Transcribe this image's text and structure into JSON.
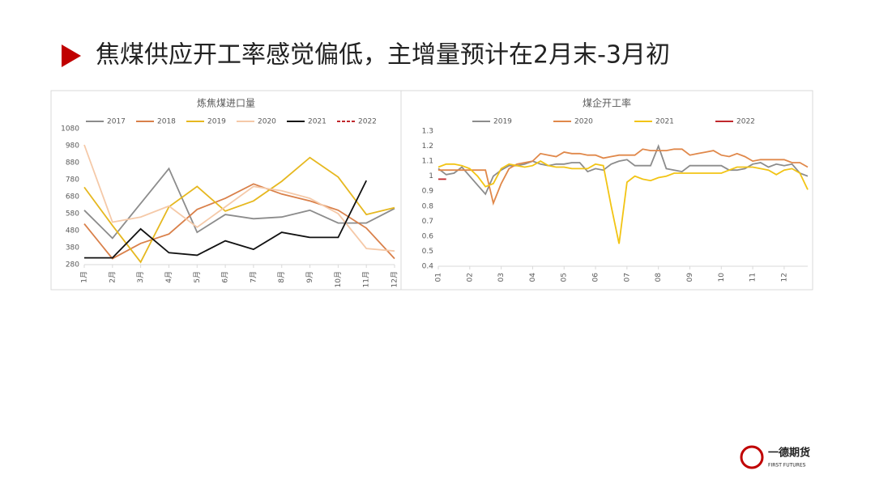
{
  "title": "焦煤供应开工率感觉偏低，主增量预计在2月末-3月初",
  "logo": {
    "name": "一德期货",
    "english": "FIRST FUTURES"
  },
  "chart_data": [
    {
      "type": "line",
      "title": "炼焦煤进口量",
      "categories": [
        "1月",
        "2月",
        "3月",
        "4月",
        "5月",
        "6月",
        "7月",
        "8月",
        "9月",
        "10月",
        "11月",
        "12月"
      ],
      "ylim": [
        280,
        1080
      ],
      "yticks": [
        280,
        380,
        480,
        580,
        680,
        780,
        880,
        980,
        1080
      ],
      "grid": false,
      "legend": "top",
      "series": [
        {
          "name": "2017",
          "color": "#8c8c8c",
          "values": [
            600,
            435,
            640,
            845,
            470,
            575,
            550,
            560,
            600,
            525,
            525,
            610
          ]
        },
        {
          "name": "2018",
          "color": "#d9804a",
          "values": [
            520,
            315,
            405,
            460,
            605,
            670,
            755,
            695,
            655,
            600,
            495,
            315
          ]
        },
        {
          "name": "2019",
          "color": "#e6b820",
          "values": [
            735,
            510,
            295,
            620,
            740,
            595,
            655,
            770,
            910,
            795,
            575,
            615
          ]
        },
        {
          "name": "2020",
          "color": "#f5c9a8",
          "values": [
            985,
            530,
            560,
            625,
            500,
            620,
            740,
            715,
            670,
            580,
            375,
            360
          ]
        },
        {
          "name": "2021",
          "color": "#111111",
          "values": [
            320,
            320,
            490,
            350,
            335,
            420,
            370,
            470,
            440,
            440,
            775,
            null
          ]
        },
        {
          "name": "2022",
          "color": "#c0282d",
          "dash": true,
          "values": [
            null,
            null,
            null,
            null,
            null,
            null,
            null,
            null,
            null,
            null,
            null,
            null
          ]
        }
      ]
    },
    {
      "type": "line",
      "title": "煤企开工率",
      "categories": [
        "01",
        null,
        null,
        null,
        "02",
        null,
        null,
        null,
        "03",
        null,
        null,
        null,
        "04",
        null,
        null,
        null,
        "05",
        null,
        null,
        null,
        "06",
        null,
        null,
        null,
        "07",
        null,
        null,
        null,
        "08",
        null,
        null,
        null,
        "09",
        null,
        null,
        null,
        "10",
        null,
        null,
        null,
        "11",
        null,
        null,
        null,
        "12",
        null,
        null,
        null
      ],
      "ylim": [
        0.4,
        1.3
      ],
      "yticks": [
        0.4,
        0.5,
        0.6,
        0.7,
        0.8,
        0.9,
        1,
        1.1,
        1.2,
        1.3
      ],
      "grid": false,
      "legend": "top",
      "series": [
        {
          "name": "2019",
          "color": "#8c8c8c",
          "values": [
            1.05,
            1.01,
            1.02,
            1.06,
            1.0,
            0.94,
            0.88,
            1.0,
            1.04,
            1.07,
            1.07,
            1.08,
            1.1,
            1.08,
            1.07,
            1.08,
            1.08,
            1.09,
            1.09,
            1.03,
            1.05,
            1.04,
            1.08,
            1.1,
            1.11,
            1.07,
            1.07,
            1.07,
            1.2,
            1.05,
            1.04,
            1.03,
            1.07,
            1.07,
            1.07,
            1.07,
            1.07,
            1.04,
            1.04,
            1.05,
            1.08,
            1.09,
            1.06,
            1.08,
            1.07,
            1.08,
            1.02,
            1.0
          ]
        },
        {
          "name": "2020",
          "color": "#e0884a",
          "values": [
            1.04,
            1.04,
            1.04,
            1.04,
            1.04,
            1.04,
            1.04,
            0.82,
            0.95,
            1.05,
            1.08,
            1.09,
            1.1,
            1.15,
            1.14,
            1.13,
            1.16,
            1.15,
            1.15,
            1.14,
            1.14,
            1.12,
            1.13,
            1.14,
            1.14,
            1.14,
            1.18,
            1.17,
            1.17,
            1.17,
            1.18,
            1.18,
            1.14,
            1.15,
            1.16,
            1.17,
            1.14,
            1.13,
            1.15,
            1.13,
            1.1,
            1.11,
            1.11,
            1.11,
            1.11,
            1.09,
            1.09,
            1.06
          ]
        },
        {
          "name": "2021",
          "color": "#f2c414",
          "values": [
            1.06,
            1.08,
            1.08,
            1.07,
            1.05,
            1.0,
            0.93,
            0.95,
            1.05,
            1.08,
            1.07,
            1.06,
            1.07,
            1.1,
            1.07,
            1.06,
            1.06,
            1.05,
            1.05,
            1.05,
            1.08,
            1.07,
            0.8,
            0.55,
            0.96,
            1.0,
            0.98,
            0.97,
            0.99,
            1.0,
            1.02,
            1.02,
            1.02,
            1.02,
            1.02,
            1.02,
            1.02,
            1.04,
            1.06,
            1.06,
            1.06,
            1.05,
            1.04,
            1.01,
            1.04,
            1.05,
            1.02,
            0.91
          ]
        },
        {
          "name": "2022",
          "color": "#c0282d",
          "values": [
            0.98,
            0.98,
            null,
            null,
            null,
            null,
            null,
            null,
            null,
            null,
            null,
            null,
            null,
            null,
            null,
            null,
            null,
            null,
            null,
            null,
            null,
            null,
            null,
            null,
            null,
            null,
            null,
            null,
            null,
            null,
            null,
            null,
            null,
            null,
            null,
            null,
            null,
            null,
            null,
            null,
            null,
            null,
            null,
            null,
            null,
            null,
            null,
            null
          ]
        }
      ]
    }
  ]
}
